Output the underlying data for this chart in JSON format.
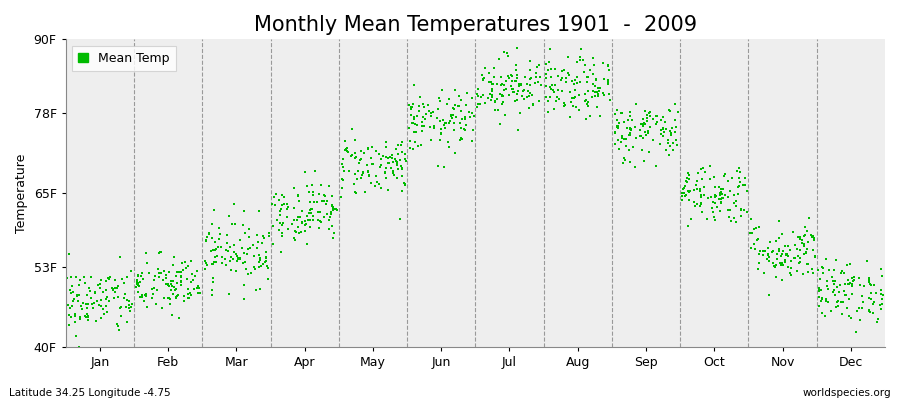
{
  "title": "Monthly Mean Temperatures 1901  -  2009",
  "ylabel": "Temperature",
  "ylim": [
    40,
    90
  ],
  "yticks": [
    40,
    53,
    65,
    78,
    90
  ],
  "ytick_labels": [
    "40F",
    "53F",
    "65F",
    "78F",
    "90F"
  ],
  "months": [
    "Jan",
    "Feb",
    "Mar",
    "Apr",
    "May",
    "Jun",
    "Jul",
    "Aug",
    "Sep",
    "Oct",
    "Nov",
    "Dec"
  ],
  "month_means": [
    47.5,
    50.0,
    55.5,
    62.0,
    69.5,
    76.5,
    82.5,
    82.0,
    75.0,
    65.0,
    55.5,
    49.0
  ],
  "month_stds": [
    2.8,
    2.5,
    2.8,
    2.5,
    2.5,
    2.5,
    2.5,
    2.5,
    2.5,
    2.5,
    2.5,
    2.5
  ],
  "n_years": 109,
  "dot_color": "#00bb00",
  "dot_size": 3,
  "background_color": "#ffffff",
  "plot_bg_color": "#eeeeee",
  "grid_color": "#999999",
  "title_fontsize": 15,
  "label_fontsize": 9,
  "tick_fontsize": 9,
  "footnote_left": "Latitude 34.25 Longitude -4.75",
  "footnote_right": "worldspecies.org",
  "seed": 42
}
